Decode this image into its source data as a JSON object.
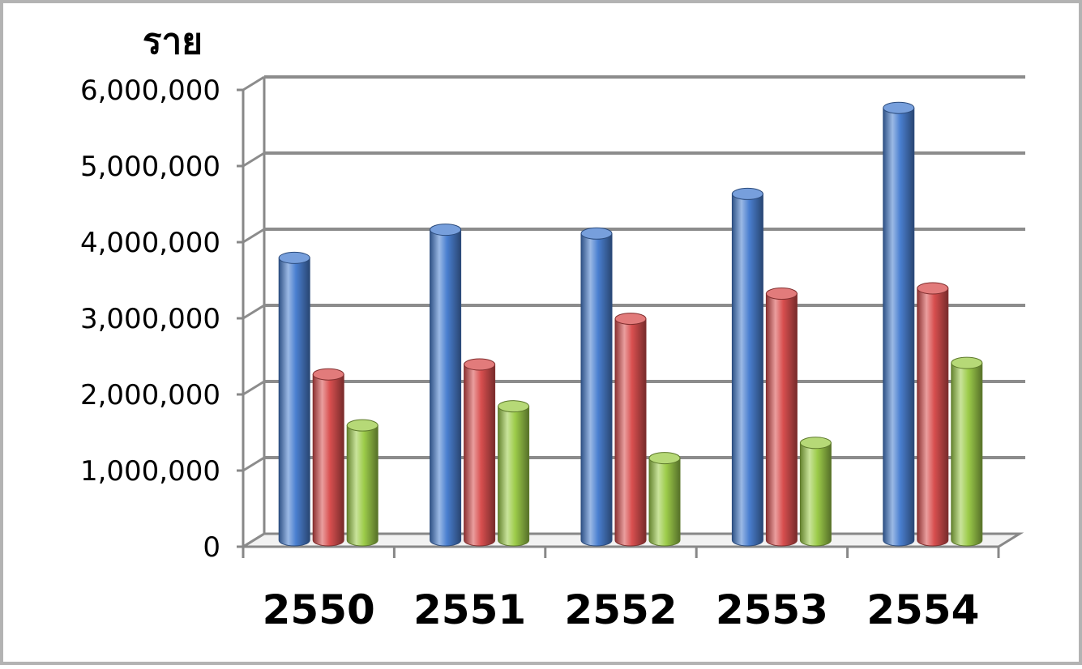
{
  "chart_data": {
    "type": "bar",
    "style": "3d-cylinder",
    "ylabel": "ราย",
    "categories": [
      "2550",
      "2551",
      "2552",
      "2553",
      "2554"
    ],
    "series": [
      {
        "values": [
          3730000,
          4100000,
          4050000,
          4570000,
          5700000
        ],
        "color": "#4a7fd0"
      },
      {
        "values": [
          2200000,
          2330000,
          2930000,
          3260000,
          3330000
        ],
        "color": "#d84f4f"
      },
      {
        "values": [
          1530000,
          1780000,
          1100000,
          1300000,
          2350000
        ],
        "color": "#9dcc4a"
      }
    ],
    "ylim": [
      0,
      6000000
    ],
    "yticks": [
      "0",
      "1,000,000",
      "2,000,000",
      "3,000,000",
      "4,000,000",
      "5,000,000",
      "6,000,000"
    ],
    "grid": true,
    "legend": "none"
  }
}
